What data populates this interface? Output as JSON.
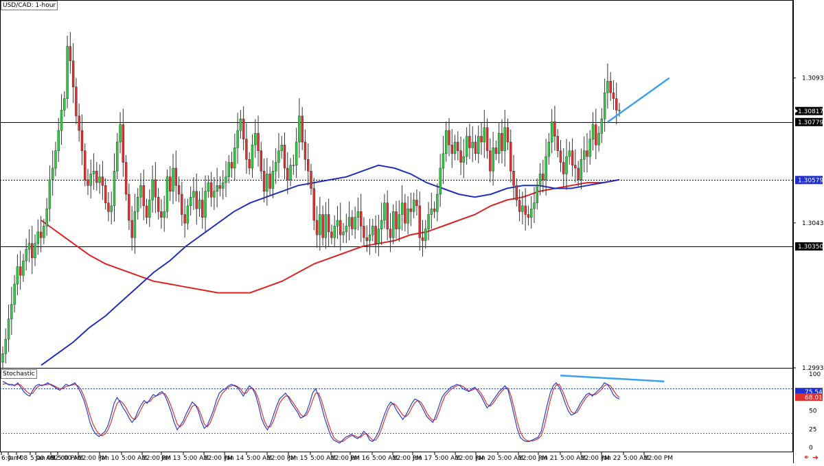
{
  "header": {
    "symbol_title": "USD/CAD: 1-hour"
  },
  "stochastic_panel": {
    "label": "Stochastic"
  },
  "footer_icons": [
    "link-icon",
    "arrow-right-icon"
  ],
  "colors": {
    "bull": "#2ecc40",
    "bear": "#e03030",
    "wick": "#333333",
    "ma100": "#1f2fbf",
    "ma200": "#e02020",
    "trend": "#3aa0f0",
    "stoch_k": "#2040d0",
    "stoch_d": "#e03030",
    "stoch_upper": "#2040d0",
    "stoch_lower": "#e03030"
  },
  "chart_data": [
    {
      "type": "candlestick",
      "title": "USD/CAD: 1-hour",
      "ylim": [
        1.29931,
        1.312
      ],
      "y_ticks": [
        "1.30931",
        "1.30431",
        "1.29931"
      ],
      "x_ticks": [
        "6:0",
        "M",
        "Jan 08",
        "5:00 AM",
        "12:00 PM",
        "Jan 09",
        "5:00 AM",
        "12:00 PM",
        "Jan 10",
        "5:00 AM",
        "12:00 PM",
        "Jan 13",
        "5:00 AM",
        "12:00 PM",
        "Jan 14",
        "5:00 AM",
        "12:00 PM",
        "Jan 15",
        "5:00 AM",
        "12:00 PM",
        "Jan 16",
        "5:00 AM",
        "12:00 PM",
        "Jan 17",
        "5:00 AM",
        "12:00 PM",
        "Jan 20",
        "5:00 AM",
        "12:00 PM",
        "Jan 21",
        "5:00 AM",
        "12:00 PM",
        "Jan 22",
        "5:00 AM",
        "12:00 PM"
      ],
      "price_labels": [
        {
          "value": "1.30817",
          "style": "current"
        },
        {
          "value": "1.30779",
          "style": "level"
        },
        {
          "value": "1.30579",
          "style": "level-blue"
        },
        {
          "value": "1.30350",
          "style": "level"
        }
      ],
      "horizontal_levels": [
        {
          "price": 1.30779,
          "style": "solid"
        },
        {
          "price": 1.30579,
          "style": "dotted"
        },
        {
          "price": 1.3035,
          "style": "solid"
        }
      ],
      "trendline": {
        "from": [
          206,
          1.30779
        ],
        "to": [
          227,
          1.30931
        ]
      },
      "closes": [
        1.2998,
        1.3003,
        1.301,
        1.3015,
        1.3022,
        1.3028,
        1.3025,
        1.303,
        1.3034,
        1.3036,
        1.3031,
        1.3036,
        1.304,
        1.3038,
        1.3042,
        1.3048,
        1.3058,
        1.3062,
        1.3068,
        1.3075,
        1.3082,
        1.3086,
        1.3104,
        1.3099,
        1.309,
        1.308,
        1.3075,
        1.3068,
        1.3058,
        1.3056,
        1.306,
        1.3061,
        1.3057,
        1.3059,
        1.3056,
        1.305,
        1.3047,
        1.3049,
        1.3061,
        1.3071,
        1.3077,
        1.3064,
        1.3053,
        1.3044,
        1.3038,
        1.3047,
        1.3052,
        1.3056,
        1.3049,
        1.3045,
        1.3051,
        1.3058,
        1.3052,
        1.3047,
        1.3045,
        1.3047,
        1.3059,
        1.3054,
        1.3062,
        1.3056,
        1.3053,
        1.3046,
        1.3043,
        1.3049,
        1.3052,
        1.3054,
        1.3048,
        1.3051,
        1.3045,
        1.3054,
        1.3057,
        1.3052,
        1.3054,
        1.3056,
        1.3055,
        1.3057,
        1.3059,
        1.3064,
        1.3062,
        1.3069,
        1.3075,
        1.3079,
        1.3072,
        1.3065,
        1.3062,
        1.307,
        1.3074,
        1.3068,
        1.3061,
        1.3054,
        1.306,
        1.3055,
        1.3061,
        1.3064,
        1.3068,
        1.307,
        1.3062,
        1.3058,
        1.3063,
        1.3063,
        1.3071,
        1.308,
        1.3071,
        1.3065,
        1.3061,
        1.3055,
        1.3044,
        1.3039,
        1.3046,
        1.3038,
        1.3046,
        1.304,
        1.3038,
        1.3042,
        1.3044,
        1.3039,
        1.304,
        1.3042,
        1.3045,
        1.3041,
        1.3045,
        1.3047,
        1.3042,
        1.3038,
        1.3037,
        1.3039,
        1.3042,
        1.3036,
        1.3041,
        1.3044,
        1.305,
        1.3041,
        1.3038,
        1.3047,
        1.3041,
        1.3046,
        1.305,
        1.3043,
        1.3048,
        1.3047,
        1.3051,
        1.3049,
        1.3038,
        1.3037,
        1.3041,
        1.3046,
        1.3048,
        1.3047,
        1.3053,
        1.3062,
        1.3067,
        1.3075,
        1.307,
        1.3067,
        1.3071,
        1.3068,
        1.3064,
        1.3066,
        1.3073,
        1.3069,
        1.3071,
        1.3067,
        1.3073,
        1.3071,
        1.3076,
        1.3068,
        1.3061,
        1.3069,
        1.3067,
        1.3074,
        1.3068,
        1.3076,
        1.3071,
        1.3061,
        1.3056,
        1.3051,
        1.3047,
        1.3049,
        1.3046,
        1.3045,
        1.3048,
        1.305,
        1.3056,
        1.306,
        1.3058,
        1.3066,
        1.3071,
        1.3078,
        1.3073,
        1.3068,
        1.3064,
        1.306,
        1.3066,
        1.3068,
        1.3063,
        1.3062,
        1.3058,
        1.3065,
        1.3068,
        1.3066,
        1.3072,
        1.3077,
        1.307,
        1.3074,
        1.3079,
        1.3088,
        1.3092,
        1.3088,
        1.3086,
        1.3082,
        1.3082
      ],
      "ma100": [
        1.2994,
        1.2998,
        1.3002,
        1.3007,
        1.3011,
        1.3016,
        1.3021,
        1.3026,
        1.303,
        1.3035,
        1.3039,
        1.3043,
        1.3047,
        1.305,
        1.3052,
        1.3054,
        1.3056,
        1.3057,
        1.3058,
        1.3059,
        1.3061,
        1.3063,
        1.3062,
        1.306,
        1.3057,
        1.3055,
        1.3053,
        1.3052,
        1.3053,
        1.3055,
        1.3056,
        1.3056,
        1.3055,
        1.3055,
        1.3056,
        1.3057,
        1.3058
      ],
      "ma200": [
        1.3044,
        1.304,
        1.3036,
        1.3032,
        1.3029,
        1.3027,
        1.3025,
        1.3023,
        1.3022,
        1.3021,
        1.302,
        1.3019,
        1.3019,
        1.3019,
        1.3021,
        1.3023,
        1.3026,
        1.3029,
        1.3031,
        1.3033,
        1.3035,
        1.3036,
        1.3037,
        1.3039,
        1.304,
        1.3042,
        1.3044,
        1.3046,
        1.3049,
        1.3051,
        1.3052,
        1.3054,
        1.3055,
        1.3056,
        1.3057,
        1.3057,
        1.3058
      ]
    },
    {
      "type": "line",
      "title": "Stochastic",
      "ylim": [
        0,
        100
      ],
      "y_ticks": [
        "100",
        "50",
        "25",
        "0"
      ],
      "price_labels": [
        "75.54",
        "68.01"
      ],
      "levels": [
        80,
        20
      ],
      "series": [
        {
          "values": [
            90,
            88,
            85,
            86,
            84,
            88,
            82,
            76,
            72,
            70,
            78,
            84,
            86,
            84,
            86,
            88,
            85,
            83,
            80,
            78,
            82,
            86,
            84,
            86,
            88,
            82,
            74,
            64,
            50,
            34,
            24,
            18,
            15,
            18,
            22,
            30,
            44,
            60,
            68,
            62,
            54,
            48,
            40,
            34,
            40,
            50,
            58,
            64,
            60,
            66,
            72,
            70,
            74,
            76,
            70,
            60,
            48,
            34,
            24,
            30,
            36,
            46,
            54,
            62,
            58,
            50,
            36,
            26,
            30,
            40,
            50,
            64,
            74,
            78,
            80,
            84,
            86,
            84,
            82,
            76,
            70,
            78,
            84,
            80,
            72,
            58,
            40,
            30,
            24,
            32,
            44,
            56,
            66,
            70,
            74,
            68,
            60,
            54,
            48,
            40,
            42,
            48,
            60,
            74,
            80,
            70,
            56,
            40,
            28,
            16,
            10,
            8,
            6,
            10,
            14,
            16,
            18,
            14,
            12,
            16,
            22,
            18,
            10,
            8,
            14,
            22,
            34,
            46,
            56,
            62,
            58,
            50,
            44,
            38,
            44,
            52,
            60,
            66,
            64,
            58,
            50,
            42,
            38,
            34,
            44,
            56,
            68,
            74,
            78,
            82,
            84,
            86,
            84,
            80,
            78,
            76,
            80,
            82,
            76,
            70,
            62,
            54,
            58,
            64,
            70,
            76,
            80,
            84,
            78,
            62,
            44,
            26,
            14,
            10,
            8,
            8,
            10,
            12,
            14,
            22,
            40,
            58,
            74,
            84,
            88,
            82,
            72,
            60,
            50,
            44,
            46,
            52,
            60,
            66,
            72,
            74,
            70,
            74,
            78,
            82,
            88,
            86,
            80,
            72,
            68,
            66
          ]
        },
        {
          "values": [
            86,
            87,
            86,
            85,
            85,
            86,
            85,
            80,
            76,
            73,
            74,
            80,
            84,
            85,
            85,
            86,
            86,
            84,
            82,
            80,
            80,
            83,
            84,
            85,
            86,
            84,
            79,
            70,
            58,
            44,
            32,
            24,
            18,
            16,
            18,
            24,
            34,
            48,
            60,
            64,
            60,
            54,
            46,
            40,
            38,
            44,
            52,
            60,
            62,
            63,
            68,
            70,
            72,
            74,
            73,
            66,
            56,
            44,
            32,
            28,
            32,
            40,
            48,
            56,
            58,
            54,
            44,
            32,
            28,
            34,
            44,
            56,
            66,
            74,
            78,
            82,
            84,
            85,
            83,
            80,
            74,
            74,
            80,
            81,
            76,
            66,
            50,
            36,
            28,
            28,
            36,
            48,
            60,
            66,
            70,
            70,
            64,
            58,
            52,
            45,
            42,
            44,
            52,
            64,
            74,
            74,
            64,
            50,
            36,
            24,
            14,
            10,
            8,
            8,
            11,
            14,
            16,
            16,
            14,
            14,
            18,
            19,
            14,
            10,
            10,
            16,
            26,
            38,
            50,
            58,
            60,
            56,
            50,
            44,
            42,
            46,
            54,
            61,
            64,
            62,
            55,
            47,
            41,
            37,
            38,
            48,
            60,
            70,
            75,
            79,
            82,
            84,
            85,
            83,
            80,
            77,
            78,
            80,
            79,
            74,
            67,
            59,
            56,
            60,
            66,
            72,
            77,
            81,
            81,
            70,
            54,
            36,
            22,
            14,
            10,
            9,
            9,
            10,
            12,
            16,
            28,
            46,
            64,
            78,
            85,
            86,
            78,
            68,
            57,
            49,
            46,
            48,
            55,
            62,
            68,
            72,
            72,
            72,
            75,
            79,
            84,
            86,
            84,
            78,
            72,
            68
          ]
        }
      ],
      "trendline": {
        "from": [
          180,
          98
        ],
        "to": [
          198,
          90
        ]
      }
    }
  ]
}
